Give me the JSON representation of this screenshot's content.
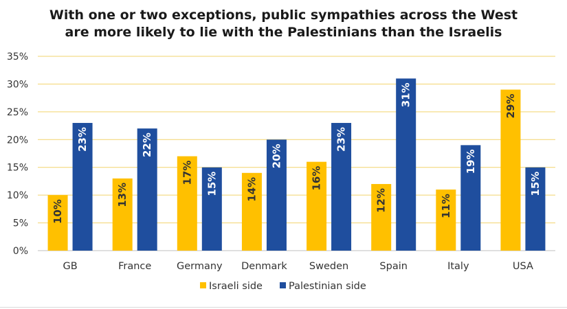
{
  "chart_data": {
    "type": "bar",
    "title_lines": [
      "With one or two exceptions, public sympathies across the West",
      "are more likely to lie with the Palestinians than the Israelis"
    ],
    "categories": [
      "GB",
      "France",
      "Germany",
      "Denmark",
      "Sweden",
      "Spain",
      "Italy",
      "USA"
    ],
    "series": [
      {
        "name": "Israeli side",
        "color": "#FFC000",
        "label_color": "#333333",
        "values": [
          10,
          13,
          17,
          14,
          16,
          12,
          11,
          29
        ],
        "labels": [
          "10%",
          "13%",
          "17%",
          "14%",
          "16%",
          "12%",
          "11%",
          "29%"
        ]
      },
      {
        "name": "Palestinian side",
        "color": "#1F4E9E",
        "label_color": "#ffffff",
        "values": [
          23,
          22,
          15,
          20,
          23,
          31,
          19,
          15
        ],
        "labels": [
          "23%",
          "22%",
          "15%",
          "20%",
          "23%",
          "31%",
          "19%",
          "15%"
        ]
      }
    ],
    "ylim": [
      0,
      35
    ],
    "y_ticks": [
      0,
      5,
      10,
      15,
      20,
      25,
      30,
      35
    ],
    "y_tick_labels": [
      "0%",
      "5%",
      "10%",
      "15%",
      "20%",
      "25%",
      "30%",
      "35%"
    ],
    "grid": true,
    "grid_color": "#F2D36B",
    "legend_position": "bottom-center",
    "xlabel": "",
    "ylabel": ""
  }
}
